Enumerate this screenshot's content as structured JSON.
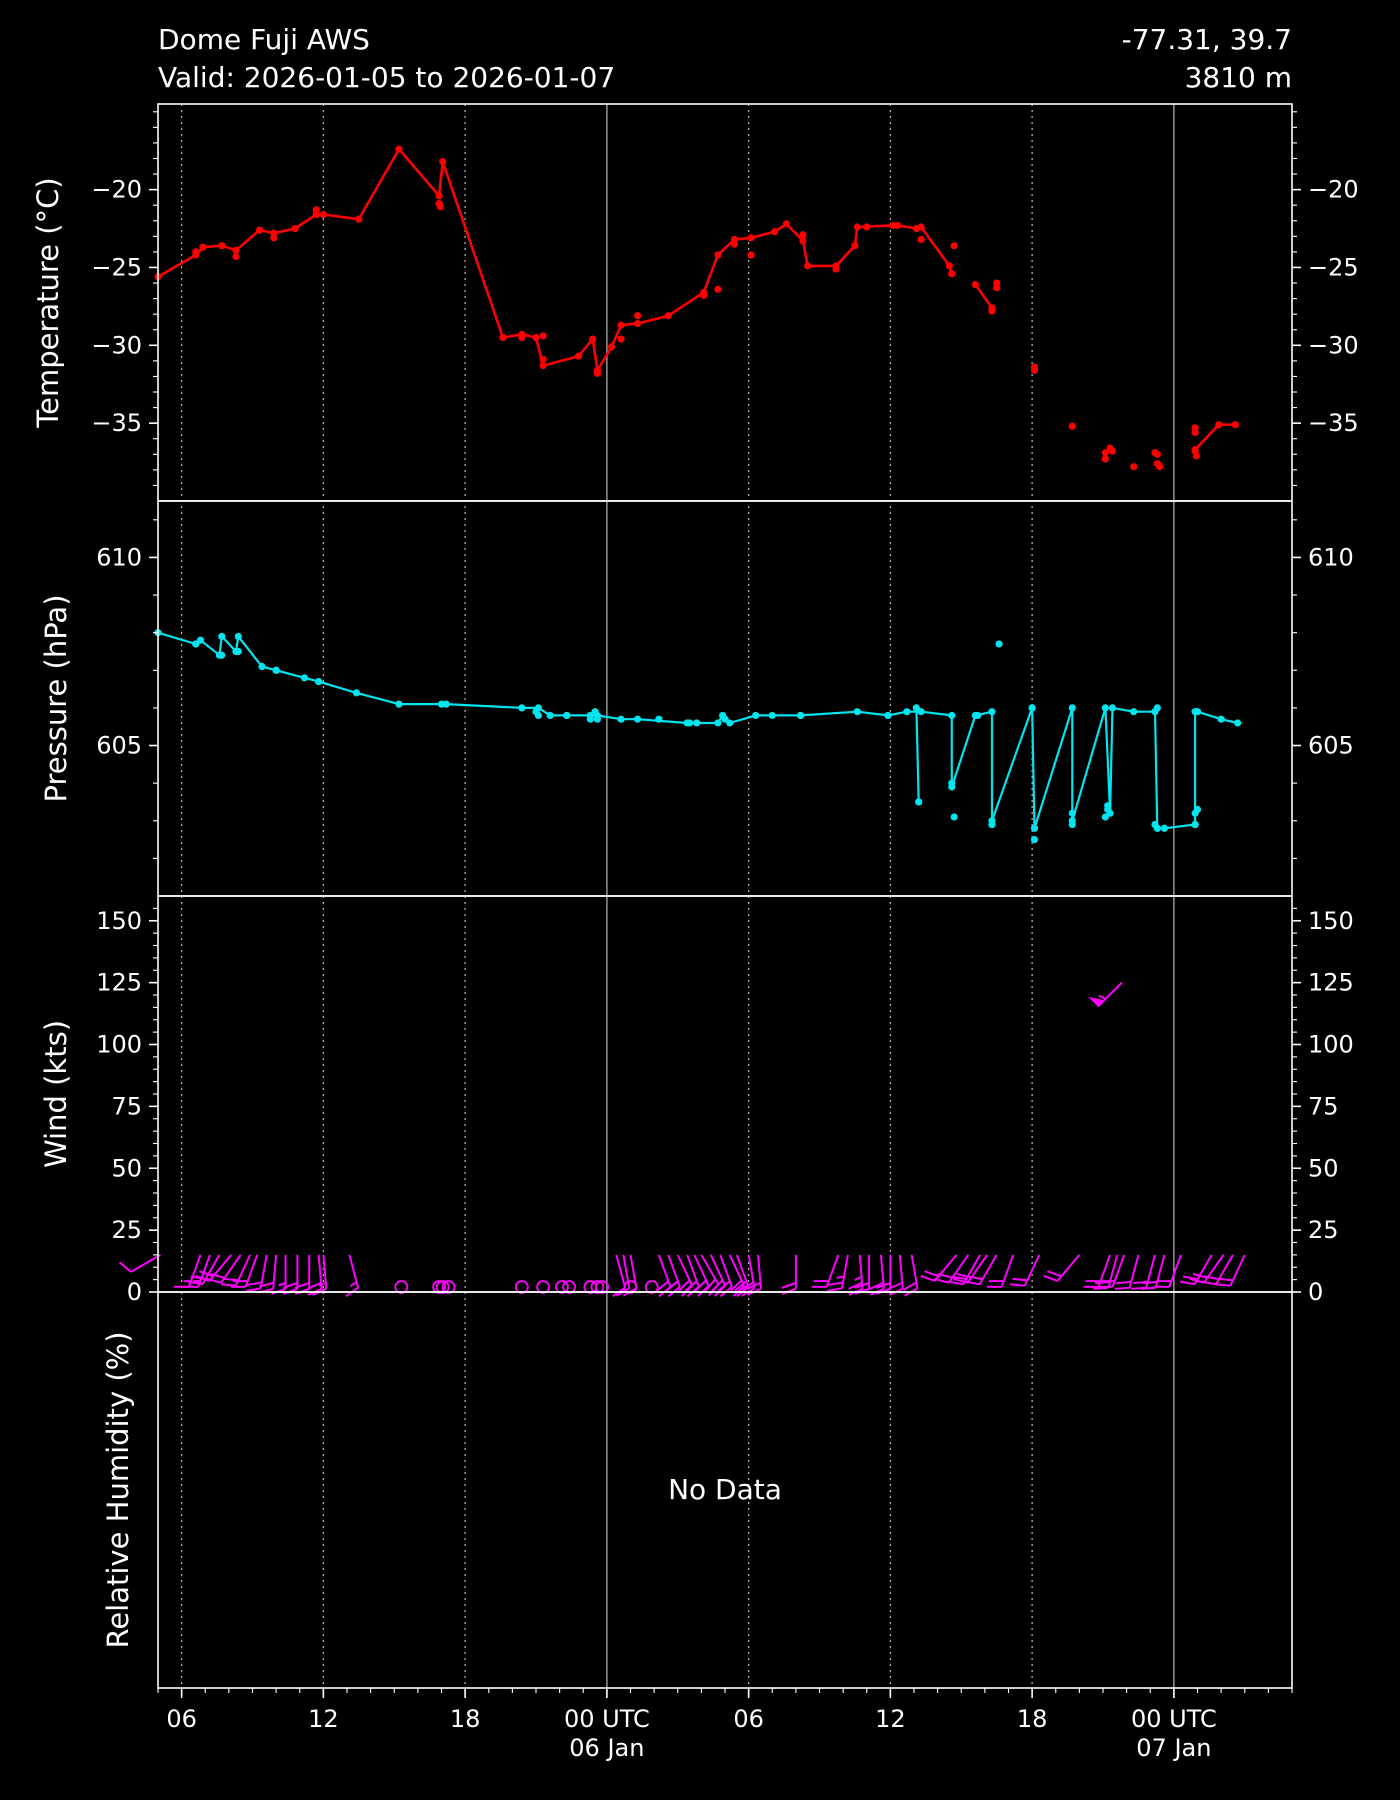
{
  "header": {
    "station": "Dome Fuji AWS",
    "valid": "Valid: 2026-01-05 to 2026-01-07",
    "coords": "-77.31, 39.7",
    "elevation": "3810 m"
  },
  "x_axis": {
    "unit": "hours from 2026-01-05 00 UTC",
    "range": [
      5,
      53
    ],
    "major_ticks": [
      {
        "x": 6,
        "label": "06"
      },
      {
        "x": 12,
        "label": "12"
      },
      {
        "x": 18,
        "label": "18"
      },
      {
        "x": 24,
        "label": "00 UTC",
        "sublabel": "06 Jan"
      },
      {
        "x": 30,
        "label": "06"
      },
      {
        "x": 36,
        "label": "12"
      },
      {
        "x": 42,
        "label": "18"
      },
      {
        "x": 48,
        "label": "00 UTC",
        "sublabel": "07 Jan"
      }
    ],
    "solid_gridlines": [
      24,
      48
    ]
  },
  "chart_data": [
    {
      "type": "line",
      "ylabel": "Temperature (°C)",
      "ylim": [
        -40,
        -14.5
      ],
      "yticks": [
        -20,
        -25,
        -30,
        -35
      ],
      "color": "#ff0000",
      "series": [
        {
          "x": [
            5.0,
            6.6,
            6.9,
            7.7,
            8.3,
            9.3,
            9.9,
            10.8,
            11.7,
            12.0,
            13.5,
            15.2,
            16.9,
            17.05,
            19.6,
            20.4,
            21.0,
            21.3,
            22.8,
            23.4,
            23.6,
            24.2,
            24.6,
            25.3,
            26.6,
            28.1,
            28.7,
            29.4,
            30.1,
            31.1,
            31.6,
            32.3,
            32.5,
            33.7,
            34.5,
            34.6,
            36.1,
            36.3,
            37.1
          ],
          "y": [
            -25.6,
            -24.2,
            -23.7,
            -23.6,
            -23.9,
            -22.6,
            -22.8,
            -22.5,
            -21.6,
            -21.6,
            -21.9,
            -17.4,
            -20.4,
            -18.2,
            -29.5,
            -29.3,
            -29.5,
            -31.3,
            -30.7,
            -29.6,
            -31.6,
            -30.1,
            -28.7,
            -28.6,
            -28.1,
            -26.6,
            -24.2,
            -23.2,
            -23.1,
            -22.7,
            -22.2,
            -23.3,
            -24.9,
            -24.9,
            -23.6,
            -22.4,
            -22.3,
            -22.3,
            -22.5
          ]
        },
        {
          "x": [
            37.3,
            38.5,
            38.6
          ],
          "y": [
            -22.4,
            -24.9,
            -25.4
          ]
        },
        {
          "x": [
            39.6,
            40.3
          ],
          "y": [
            -26.1,
            -27.6
          ]
        },
        {
          "x": [
            48.9,
            49.9,
            50.6
          ],
          "y": [
            -36.7,
            -35.1,
            -35.1
          ]
        }
      ],
      "points": [
        [
          6.6,
          -24.0
        ],
        [
          8.3,
          -24.3
        ],
        [
          9.9,
          -23.1
        ],
        [
          11.7,
          -21.3
        ],
        [
          16.9,
          -20.9
        ],
        [
          16.95,
          -21.1
        ],
        [
          20.4,
          -29.5
        ],
        [
          21.3,
          -29.4
        ],
        [
          21.3,
          -30.9
        ],
        [
          23.6,
          -31.8
        ],
        [
          24.6,
          -29.6
        ],
        [
          25.3,
          -28.1
        ],
        [
          28.1,
          -26.8
        ],
        [
          28.7,
          -26.4
        ],
        [
          29.4,
          -23.5
        ],
        [
          30.1,
          -24.2
        ],
        [
          32.3,
          -22.9
        ],
        [
          33.7,
          -25.1
        ],
        [
          35.0,
          -22.4
        ],
        [
          37.3,
          -23.2
        ],
        [
          38.6,
          -25.4
        ],
        [
          38.7,
          -23.6
        ],
        [
          40.3,
          -27.8
        ],
        [
          40.5,
          -26.0
        ],
        [
          40.5,
          -26.3
        ],
        [
          42.1,
          -31.4
        ],
        [
          42.1,
          -31.6
        ],
        [
          43.7,
          -35.2
        ],
        [
          45.1,
          -36.9
        ],
        [
          45.1,
          -37.3
        ],
        [
          45.3,
          -36.6
        ],
        [
          45.4,
          -36.8
        ],
        [
          46.3,
          -37.8
        ],
        [
          47.2,
          -36.9
        ],
        [
          47.3,
          -37.0
        ],
        [
          47.3,
          -37.6
        ],
        [
          47.4,
          -37.8
        ],
        [
          48.9,
          -35.3
        ],
        [
          48.9,
          -35.6
        ],
        [
          48.9,
          -36.8
        ],
        [
          48.95,
          -37.1
        ]
      ]
    },
    {
      "type": "line",
      "ylabel": "Pressure (hPa)",
      "ylim": [
        601.0,
        611.5
      ],
      "yticks": [
        610,
        605
      ],
      "color": "#00e5ee",
      "series": [
        {
          "x": [
            5.0,
            6.6,
            6.8,
            7.6,
            7.7,
            8.3,
            8.4,
            9.4,
            10.0,
            11.2,
            11.8,
            13.4,
            15.2,
            17.2,
            20.4,
            21.1,
            21.6,
            22.3,
            23.3,
            23.6,
            24.6,
            25.3,
            27.4,
            27.8,
            28.7,
            28.9,
            29.2,
            30.3,
            31.0,
            32.2,
            34.6,
            35.9,
            36.7,
            37.3,
            38.6,
            38.6,
            39.6,
            40.3,
            40.3,
            42.0,
            42.1,
            43.7,
            43.7,
            45.1,
            45.3,
            45.4,
            46.3,
            47.2,
            47.3,
            47.6,
            48.9,
            48.9,
            49.0,
            50.0,
            50.7
          ],
          "y": [
            608.0,
            607.7,
            607.8,
            607.4,
            607.9,
            607.5,
            607.9,
            607.1,
            607.0,
            606.8,
            606.7,
            606.4,
            606.1,
            606.1,
            606.0,
            606.0,
            605.8,
            605.8,
            605.8,
            605.8,
            605.7,
            605.7,
            605.6,
            605.6,
            605.6,
            605.8,
            605.6,
            605.8,
            605.8,
            605.8,
            605.9,
            605.8,
            605.9,
            605.9,
            605.8,
            603.9,
            605.8,
            605.9,
            603.0,
            606.0,
            602.8,
            606.0,
            603.0,
            606.0,
            603.2,
            606.0,
            605.9,
            605.9,
            602.8,
            602.8,
            602.9,
            605.9,
            605.9,
            605.7,
            605.6
          ]
        },
        {
          "x": [
            37.1,
            37.2
          ],
          "y": [
            606.0,
            603.5
          ]
        }
      ],
      "points": [
        [
          6.6,
          607.7
        ],
        [
          7.7,
          607.4
        ],
        [
          8.4,
          607.5
        ],
        [
          10.0,
          607.0
        ],
        [
          11.8,
          606.7
        ],
        [
          17.0,
          606.1
        ],
        [
          21.0,
          605.9
        ],
        [
          21.1,
          605.8
        ],
        [
          22.3,
          605.8
        ],
        [
          23.3,
          605.7
        ],
        [
          23.5,
          605.9
        ],
        [
          23.6,
          605.7
        ],
        [
          26.2,
          605.7
        ],
        [
          27.5,
          605.6
        ],
        [
          29.0,
          605.7
        ],
        [
          32.2,
          605.8
        ],
        [
          35.9,
          605.8
        ],
        [
          37.2,
          603.5
        ],
        [
          38.6,
          604.0
        ],
        [
          38.7,
          603.1
        ],
        [
          39.7,
          605.8
        ],
        [
          40.6,
          607.7
        ],
        [
          40.3,
          602.9
        ],
        [
          40.3,
          602.9
        ],
        [
          42.1,
          602.5
        ],
        [
          42.0,
          606.0
        ],
        [
          43.7,
          602.9
        ],
        [
          43.7,
          603.2
        ],
        [
          45.2,
          603.4
        ],
        [
          45.2,
          603.3
        ],
        [
          45.1,
          603.1
        ],
        [
          47.2,
          602.9
        ],
        [
          47.3,
          602.8
        ],
        [
          47.3,
          606.0
        ],
        [
          48.9,
          602.9
        ],
        [
          48.9,
          603.2
        ],
        [
          49.0,
          603.3
        ],
        [
          48.95,
          605.9
        ]
      ]
    },
    {
      "type": "scatter",
      "ylabel": "Wind (kts)",
      "ylim": [
        0,
        160
      ],
      "yticks": [
        150,
        125,
        100,
        75,
        50,
        25,
        0
      ],
      "color": "#ff00ff",
      "barbs": [
        [
          5.1,
          15,
          240,
          12
        ],
        [
          6.8,
          15,
          200,
          15
        ],
        [
          7.2,
          15,
          200,
          15
        ],
        [
          7.6,
          15,
          210,
          18
        ],
        [
          8.1,
          15,
          220,
          18
        ],
        [
          8.5,
          15,
          215,
          20
        ],
        [
          8.9,
          15,
          205,
          20
        ],
        [
          9.2,
          15,
          200,
          20
        ],
        [
          9.6,
          15,
          190,
          18
        ],
        [
          10.0,
          15,
          185,
          18
        ],
        [
          10.4,
          15,
          180,
          15
        ],
        [
          10.9,
          15,
          180,
          18
        ],
        [
          11.4,
          15,
          180,
          18
        ],
        [
          11.8,
          15,
          175,
          18
        ],
        [
          12.0,
          15,
          175,
          15
        ],
        [
          13.1,
          15,
          165,
          15
        ],
        [
          24.4,
          15,
          165,
          12
        ],
        [
          24.7,
          15,
          170,
          12
        ],
        [
          25.0,
          15,
          170,
          12
        ],
        [
          26.2,
          15,
          160,
          18
        ],
        [
          26.6,
          15,
          160,
          18
        ],
        [
          27.0,
          15,
          155,
          18
        ],
        [
          27.4,
          15,
          160,
          20
        ],
        [
          27.7,
          15,
          155,
          20
        ],
        [
          28.0,
          15,
          150,
          20
        ],
        [
          28.4,
          15,
          155,
          22
        ],
        [
          28.8,
          15,
          160,
          22
        ],
        [
          29.2,
          15,
          155,
          22
        ],
        [
          29.5,
          15,
          160,
          20
        ],
        [
          30.0,
          15,
          170,
          20
        ],
        [
          30.4,
          15,
          175,
          22
        ],
        [
          32.0,
          15,
          180,
          22
        ],
        [
          33.8,
          15,
          200,
          22
        ],
        [
          34.2,
          15,
          190,
          25
        ],
        [
          34.7,
          15,
          175,
          25
        ],
        [
          35.1,
          15,
          180,
          22
        ],
        [
          35.6,
          15,
          175,
          22
        ],
        [
          36.0,
          15,
          180,
          22
        ],
        [
          36.4,
          15,
          175,
          22
        ],
        [
          36.9,
          15,
          170,
          22
        ],
        [
          38.8,
          15,
          220,
          18
        ],
        [
          39.3,
          15,
          215,
          18
        ],
        [
          39.8,
          15,
          210,
          22
        ],
        [
          40.1,
          15,
          215,
          22
        ],
        [
          40.5,
          15,
          210,
          20
        ],
        [
          41.2,
          15,
          200,
          22
        ],
        [
          42.3,
          15,
          205,
          18
        ],
        [
          44.0,
          15,
          220,
          18
        ],
        [
          45.3,
          15,
          200,
          22
        ],
        [
          45.6,
          15,
          195,
          22
        ],
        [
          45.9,
          15,
          200,
          22
        ],
        [
          46.5,
          15,
          195,
          20
        ],
        [
          47.2,
          15,
          195,
          20
        ],
        [
          47.6,
          15,
          195,
          20
        ],
        [
          48.3,
          15,
          200,
          20
        ],
        [
          49.6,
          15,
          210,
          18
        ],
        [
          50.1,
          15,
          215,
          20
        ],
        [
          50.5,
          15,
          210,
          20
        ],
        [
          51.0,
          15,
          205,
          20
        ],
        [
          45.8,
          125,
          225,
          55
        ]
      ],
      "calm": [
        15.3,
        16.9,
        17.05,
        17.3,
        20.4,
        21.3,
        22.1,
        22.4,
        23.3,
        23.6,
        23.8,
        25.0,
        25.9
      ]
    },
    {
      "type": "line",
      "ylabel": "Relative Humidity (%)",
      "message": "No Data"
    }
  ]
}
